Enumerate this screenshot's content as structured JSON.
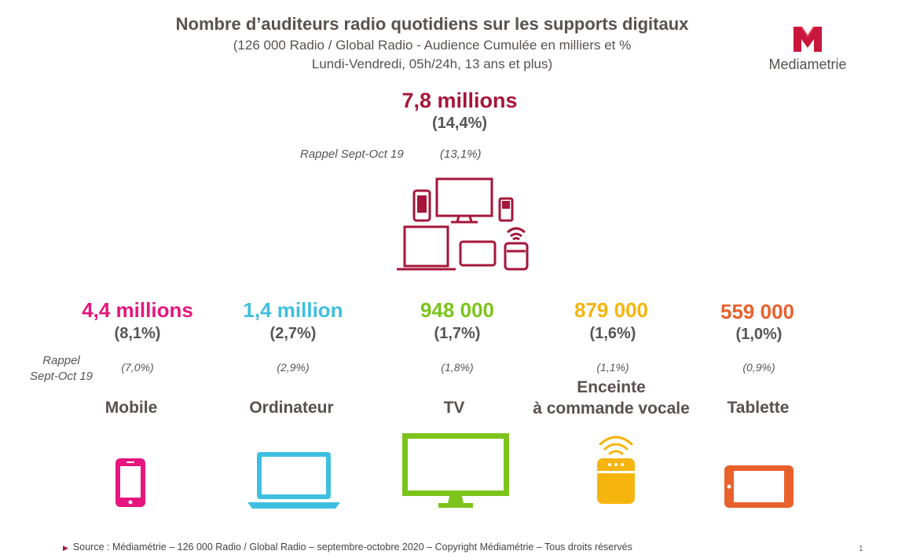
{
  "header": {
    "title": "Nombre d’auditeurs radio quotidiens sur les supports digitaux",
    "subtitle_line1": "(126 000 Radio / Global Radio - Audience Cumulée en milliers et %",
    "subtitle_line2": "Lundi-Vendredi, 05h/24h, 13 ans et plus)"
  },
  "logo": {
    "text": "Mediametrie",
    "color": "#c8163c"
  },
  "total": {
    "value": "7,8 millions",
    "pct": "(14,4%)",
    "rappel_label": "Rappel Sept-Oct 19",
    "rappel_value": "(13,1%)",
    "color": "#a5163a",
    "icon": "devices-group-icon"
  },
  "rappel_row_label": {
    "line1": "Rappel",
    "line2": "Sept-Oct 19"
  },
  "supports": [
    {
      "id": "mobile",
      "value": "4,4 millions",
      "pct": "(8,1%)",
      "rappel": "(7,0%)",
      "label": "Mobile",
      "label2": "",
      "color": "#e6157f",
      "icon": "smartphone-icon"
    },
    {
      "id": "ordinateur",
      "value": "1,4 million",
      "pct": "(2,7%)",
      "rappel": "(2,9%)",
      "label": "Ordinateur",
      "label2": "",
      "color": "#3ebfe0",
      "icon": "laptop-icon"
    },
    {
      "id": "tv",
      "value": "948 000",
      "pct": "(1,7%)",
      "rappel": "(1,8%)",
      "label": "TV",
      "label2": "",
      "color": "#7cc41c",
      "icon": "tv-icon"
    },
    {
      "id": "enceinte",
      "value": "879 000",
      "pct": "(1,6%)",
      "rappel": "(1,1%)",
      "label": "Enceinte",
      "label2": "à commande vocale",
      "color": "#f5b50e",
      "icon": "smart-speaker-icon"
    },
    {
      "id": "tablette",
      "value": "559 000",
      "pct": "(1,0%)",
      "rappel": "(0,9%)",
      "label": "Tablette",
      "label2": "",
      "color": "#e8612c",
      "icon": "tablet-icon"
    }
  ],
  "footer": {
    "source": "Source : Médiamétrie –  126 000 Radio / Global Radio – septembre-octobre 2020 – Copyright Médiamétrie – Tous droits réservés",
    "page": "1"
  }
}
